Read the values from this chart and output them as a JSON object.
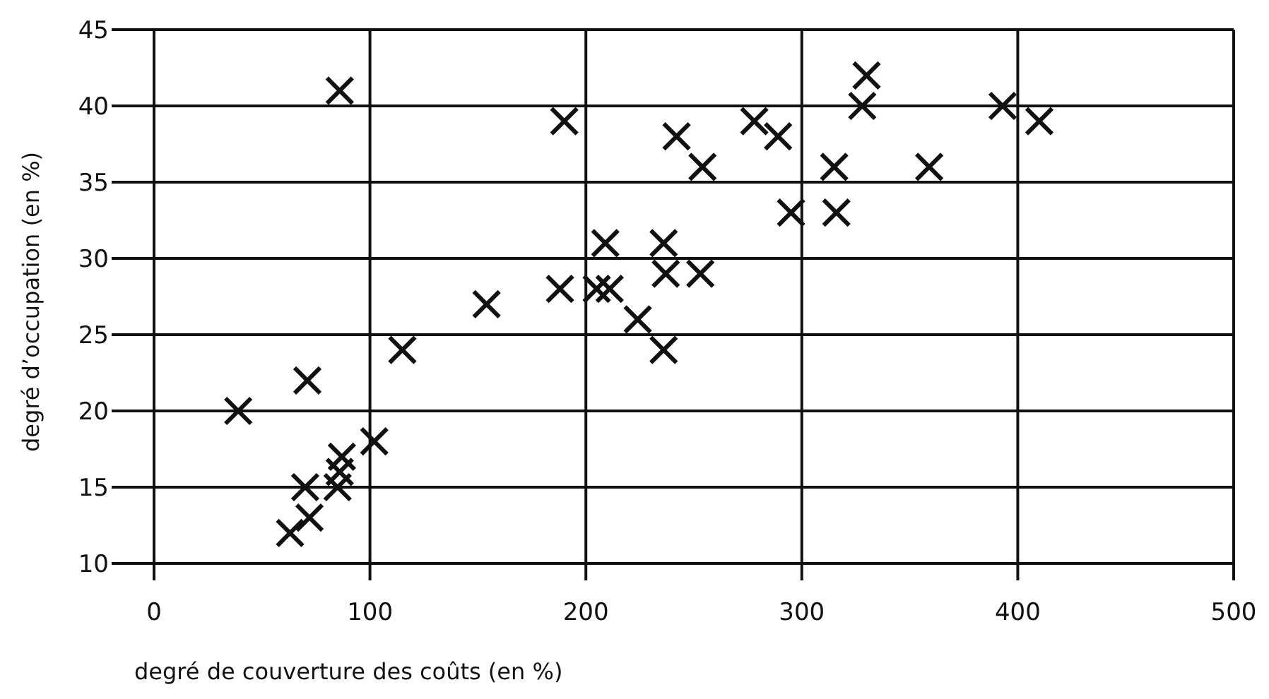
{
  "chart_data": {
    "type": "scatter",
    "xlabel": "degré de couverture des coûts (en %)",
    "ylabel": "degré d’occupation (en %)",
    "xlim": [
      0,
      500
    ],
    "xticks": [
      0,
      100,
      200,
      300,
      400,
      500
    ],
    "ylim": [
      10,
      45
    ],
    "yticks": [
      10,
      15,
      20,
      25,
      30,
      35,
      40,
      45
    ],
    "grid": true,
    "marker": "cross",
    "series": [
      {
        "color": "#111111",
        "x": [
          86,
          190,
          39,
          71,
          115,
          154,
          102,
          87,
          86,
          85,
          70,
          72,
          63,
          188,
          205,
          211,
          209,
          224,
          236,
          236,
          237,
          253,
          242,
          254,
          278,
          289,
          295,
          316,
          315,
          330,
          328,
          359,
          393,
          410
        ],
        "values": [
          41,
          39,
          20,
          22,
          24,
          27,
          18,
          17,
          16,
          15,
          15,
          13,
          12,
          28,
          28,
          28,
          31,
          26,
          24,
          31,
          29,
          29,
          38,
          36,
          39,
          38,
          33,
          33,
          36,
          42,
          40,
          36,
          40,
          39
        ]
      }
    ]
  }
}
